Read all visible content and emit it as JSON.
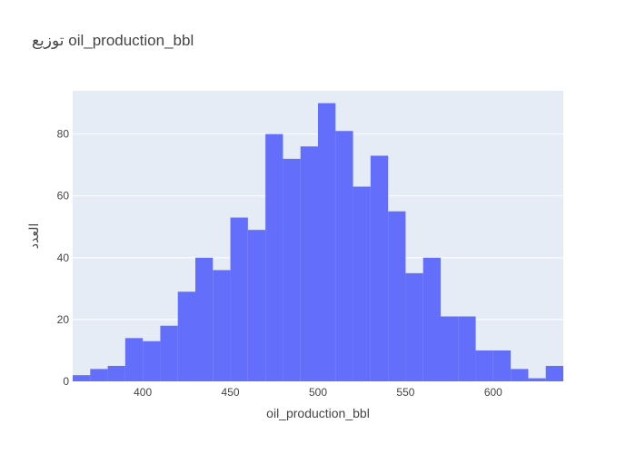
{
  "chart_data": {
    "type": "bar",
    "title": "توزيع oil_production_bbl",
    "xlabel": "oil_production_bbl",
    "ylabel": "العدد",
    "xlim": [
      360,
      640
    ],
    "ylim": [
      0,
      94
    ],
    "bin_width": 10,
    "bin_starts": [
      360,
      370,
      380,
      390,
      400,
      410,
      420,
      430,
      440,
      450,
      460,
      470,
      480,
      490,
      500,
      510,
      520,
      530,
      540,
      550,
      560,
      570,
      580,
      590,
      600,
      610,
      620,
      630
    ],
    "values": [
      2,
      4,
      5,
      14,
      13,
      18,
      29,
      40,
      36,
      53,
      49,
      80,
      72,
      76,
      90,
      81,
      63,
      73,
      55,
      35,
      40,
      21,
      21,
      10,
      10,
      4,
      1,
      5
    ],
    "x_ticks": [
      400,
      450,
      500,
      550,
      600
    ],
    "y_ticks": [
      0,
      20,
      40,
      60,
      80
    ],
    "grid": true,
    "colors": {
      "bar": "#636efa",
      "plot_bg": "#e5ecf6",
      "grid": "#ffffff",
      "text": "#444444"
    }
  }
}
